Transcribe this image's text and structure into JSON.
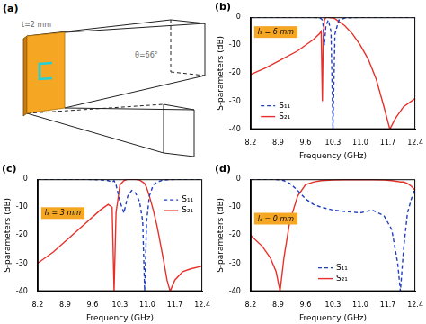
{
  "diagram": {
    "label": "(a)",
    "thickness_label": "t=2 mm",
    "angle_label": "θ=66°"
  },
  "chart_data": [
    {
      "type": "line",
      "title": "(b)",
      "annotation": "lₛ = 6 mm",
      "x_label": "Frequency (GHz)",
      "y_label": "S-parameters (dB)",
      "x": [
        8.2,
        8.6,
        9.0,
        9.4,
        9.8,
        9.95,
        10.0,
        10.03,
        10.05,
        10.08,
        10.12,
        10.18,
        10.25,
        10.3,
        10.35,
        10.45,
        10.6,
        10.8,
        11.0,
        11.2,
        11.4,
        11.6,
        11.75,
        11.9,
        12.1,
        12.4
      ],
      "series": [
        {
          "name": "S₁₁",
          "color": "#1f3fbf",
          "line_style": "dashed",
          "values": [
            0,
            0,
            0,
            0,
            0,
            -0.2,
            -0.5,
            -1,
            -3,
            -10,
            -3,
            -1,
            -5,
            -40,
            -6,
            -1,
            -0.3,
            -0.1,
            0,
            0,
            0,
            0,
            0,
            0,
            0,
            0
          ]
        },
        {
          "name": "S₂₁",
          "color": "#e8302a",
          "line_style": "solid",
          "values": [
            -20.5,
            -18,
            -15,
            -12,
            -8,
            -6,
            -5,
            -30,
            -8,
            -1,
            0,
            0,
            -0.2,
            -0.2,
            -0.5,
            -1.5,
            -3,
            -6,
            -10,
            -15,
            -22,
            -32,
            -40,
            -36,
            -32,
            -29
          ]
        }
      ],
      "xlim": [
        8.2,
        12.4
      ],
      "xticks": [
        8.2,
        8.9,
        9.6,
        10.3,
        {
          "value": 11,
          "label": "11.0"
        },
        11.7,
        12.4
      ],
      "ylim": [
        -40,
        0
      ],
      "yticks": [
        -40,
        -30,
        -20,
        -10,
        0
      ],
      "grid": false,
      "legend": "lower left"
    },
    {
      "type": "line",
      "title": "(c)",
      "annotation": "lₛ = 3 mm",
      "x_label": "Frequency (GHz)",
      "y_label": "S-parameters (dB)",
      "x": [
        8.2,
        8.6,
        9.0,
        9.4,
        9.8,
        10.0,
        10.1,
        10.15,
        10.2,
        10.3,
        10.4,
        10.5,
        10.6,
        10.7,
        10.8,
        10.88,
        10.93,
        10.98,
        11.05,
        11.15,
        11.25,
        11.4,
        11.5,
        11.58,
        11.7,
        11.9,
        12.1,
        12.4
      ],
      "series": [
        {
          "name": "S₁₁",
          "color": "#1f3fbf",
          "line_style": "dashed",
          "values": [
            0,
            0,
            0,
            0,
            -0.2,
            -0.5,
            -1,
            -0.5,
            -2,
            -8,
            -12,
            -6,
            -4,
            -5,
            -8,
            -15,
            -40,
            -15,
            -6,
            -2,
            -1,
            -0.3,
            -0.2,
            -0.1,
            0,
            0,
            0,
            0
          ]
        },
        {
          "name": "S₂₁",
          "color": "#e8302a",
          "line_style": "solid",
          "values": [
            -30,
            -26,
            -21,
            -16,
            -11,
            -9,
            -10,
            -40,
            -12,
            -2,
            -0.5,
            0,
            0,
            0,
            -0.3,
            -1,
            -1.5,
            -3,
            -6,
            -11,
            -17,
            -28,
            -36,
            -40,
            -36,
            -33,
            -32,
            -31
          ]
        }
      ],
      "xlim": [
        8.2,
        12.4
      ],
      "xticks": [
        8.2,
        8.9,
        9.6,
        10.3,
        {
          "value": 11,
          "label": "11.0"
        },
        11.7,
        12.4
      ],
      "ylim": [
        -40,
        0
      ],
      "yticks": [
        -40,
        -30,
        -20,
        -10,
        0
      ],
      "grid": false,
      "legend": "upper right"
    },
    {
      "type": "line",
      "title": "(d)",
      "annotation": "lₛ = 0 mm",
      "x_label": "Frequency (GHz)",
      "y_label": "S-parameters (dB)",
      "x": [
        8.2,
        8.5,
        8.7,
        8.85,
        8.95,
        9.05,
        9.2,
        9.4,
        9.6,
        9.8,
        10.0,
        10.3,
        10.6,
        11.0,
        11.3,
        11.6,
        11.8,
        11.95,
        12.02,
        12.1,
        12.2,
        12.3,
        12.4
      ],
      "series": [
        {
          "name": "S₁₁",
          "color": "#1f3fbf",
          "line_style": "dashed",
          "values": [
            0,
            0,
            0,
            -0.1,
            -0.2,
            -0.5,
            -1.5,
            -4,
            -7,
            -9,
            -10,
            -11,
            -11.5,
            -12,
            -11,
            -13,
            -18,
            -30,
            -40,
            -25,
            -12,
            -7,
            -3
          ]
        },
        {
          "name": "S₂₁",
          "color": "#e8302a",
          "line_style": "solid",
          "values": [
            -20,
            -24,
            -28,
            -33,
            -40,
            -28,
            -15,
            -6,
            -2,
            -1,
            -0.5,
            -0.3,
            -0.2,
            -0.2,
            -0.2,
            -0.3,
            -0.5,
            -0.8,
            -1,
            -1,
            -1.5,
            -2.5,
            -4
          ]
        }
      ],
      "xlim": [
        8.2,
        12.4
      ],
      "xticks": [
        8.2,
        8.9,
        9.6,
        10.3,
        {
          "value": 11,
          "label": "11.0"
        },
        11.7,
        12.4
      ],
      "ylim": [
        -40,
        0
      ],
      "yticks": [
        -40,
        -30,
        -20,
        -10,
        0
      ],
      "grid": false,
      "legend": "lower center"
    }
  ]
}
